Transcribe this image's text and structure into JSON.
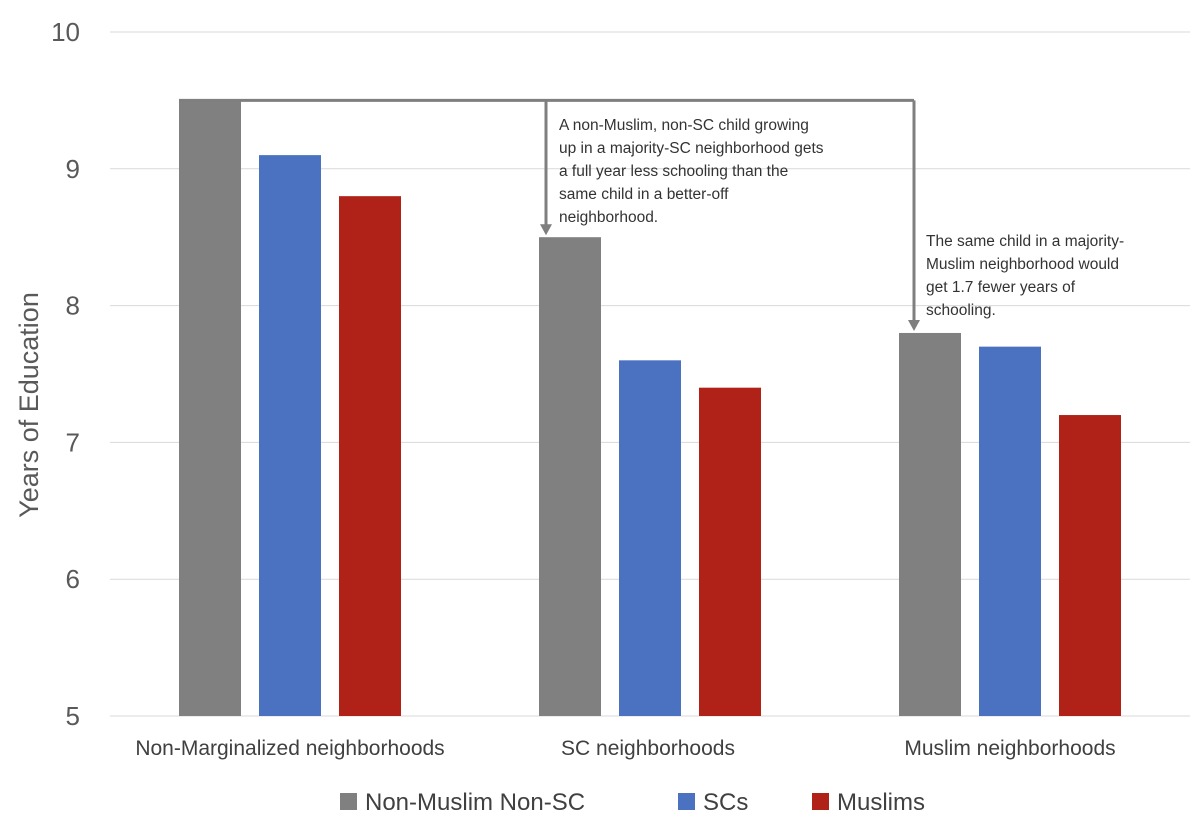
{
  "chart_data": {
    "type": "bar",
    "ylabel": "Years of Education",
    "xlabel": "",
    "ylim": [
      5,
      10
    ],
    "yticks": [
      "5",
      "6",
      "7",
      "8",
      "9",
      "10"
    ],
    "grid": true,
    "legend_position": "bottom",
    "categories": [
      "Non-Marginalized neighborhoods",
      "SC neighborhoods",
      "Muslim neighborhoods"
    ],
    "series": [
      {
        "name": "Non-Muslim Non-SC",
        "color": "#808080",
        "values": [
          9.5,
          8.5,
          7.8
        ]
      },
      {
        "name": "SCs",
        "color": "#4a72c0",
        "values": [
          9.1,
          7.6,
          7.7
        ]
      },
      {
        "name": "Muslims",
        "color": "#b02218",
        "values": [
          8.8,
          7.4,
          7.2
        ]
      }
    ],
    "annotations": [
      {
        "id": "sc",
        "lines": [
          "A non-Muslim, non-SC child growing",
          "up in a majority-SC neighborhood gets",
          "a full year less schooling than the",
          "same child in a better-off",
          "neighborhood."
        ]
      },
      {
        "id": "muslim",
        "lines": [
          "The same child in a majority-",
          "Muslim neighborhood would",
          "get 1.7 fewer years of",
          "schooling."
        ]
      }
    ]
  }
}
